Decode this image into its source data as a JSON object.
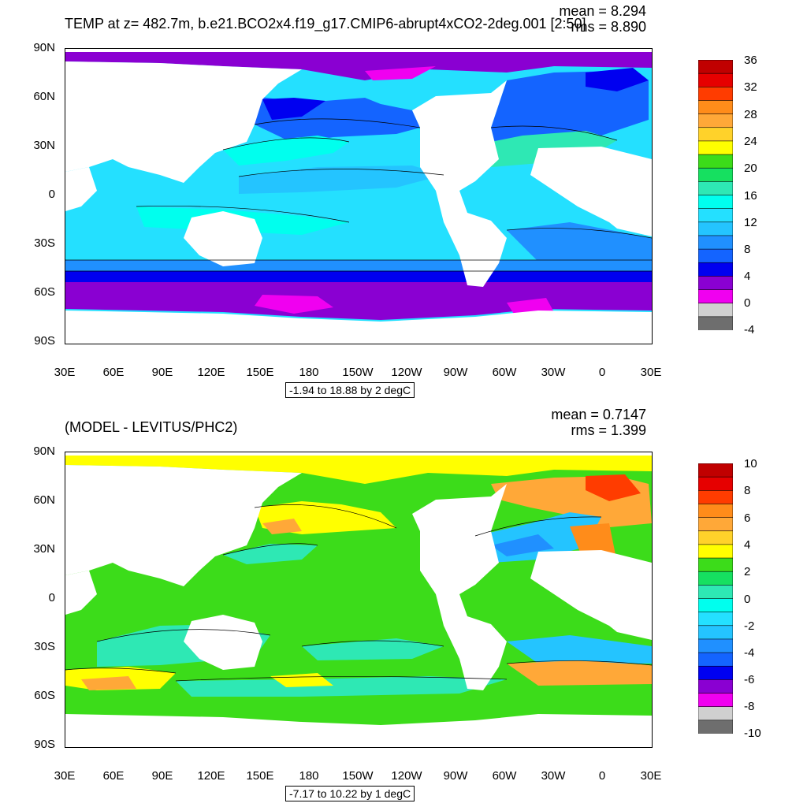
{
  "panel1": {
    "title": "TEMP at z= 482.7m, b.e21.BCO2x4.f19_g17.CMIP6-abrupt4xCO2-2deg.001 [2:50]",
    "mean_text": "mean = 8.294",
    "rms_text": "rms = 8.890",
    "range_text": "-1.94 to 18.88 by 2 degC",
    "colorbar_labels": [
      "36",
      "32",
      "28",
      "24",
      "20",
      "16",
      "12",
      "8",
      "4",
      "0",
      "-4"
    ],
    "colorbar_colors": [
      "#c00000",
      "#e60000",
      "#ff3c00",
      "#ff8c1a",
      "#ffa838",
      "#ffd22a",
      "#ffff00",
      "#3cdc1a",
      "#16e060",
      "#2ee8b4",
      "#00ffee",
      "#24e0ff",
      "#24c4ff",
      "#2090ff",
      "#1464ff",
      "#0000f0",
      "#8a00d2",
      "#f000f0",
      "#d0d0d0",
      "#6e6e6e"
    ]
  },
  "panel2": {
    "title": "(MODEL - LEVITUS/PHC2)",
    "mean_text": "mean = 0.7147",
    "rms_text": "rms = 1.399",
    "range_text": "-7.17 to 10.22 by 1 degC",
    "colorbar_labels": [
      "10",
      "8",
      "6",
      "4",
      "2",
      "0",
      "-2",
      "-4",
      "-6",
      "-8",
      "-10"
    ],
    "colorbar_colors": [
      "#c00000",
      "#e60000",
      "#ff3c00",
      "#ff8c1a",
      "#ffa838",
      "#ffd22a",
      "#ffff00",
      "#3cdc1a",
      "#16e060",
      "#2ee8b4",
      "#00ffee",
      "#24e0ff",
      "#24c4ff",
      "#2090ff",
      "#1464ff",
      "#0000f0",
      "#8a00d2",
      "#f000f0",
      "#d0d0d0",
      "#6e6e6e"
    ]
  },
  "axes": {
    "lat_labels": [
      "90N",
      "60N",
      "30N",
      "0",
      "30S",
      "60S",
      "90S"
    ],
    "lon_labels": [
      "30E",
      "60E",
      "90E",
      "120E",
      "150E",
      "180",
      "150W",
      "120W",
      "90W",
      "60W",
      "30W",
      "0",
      "30E"
    ]
  }
}
